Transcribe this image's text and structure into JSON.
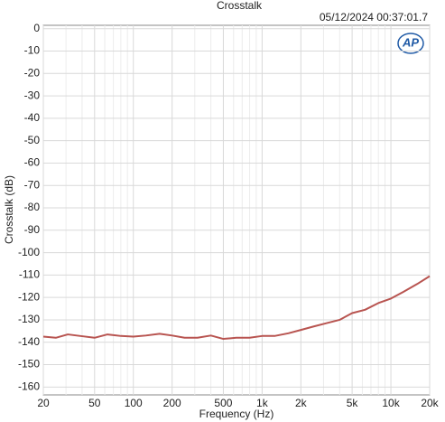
{
  "chart_data": {
    "type": "line",
    "title": "Crosstalk",
    "timestamp": "05/12/2024 00:37:01.7",
    "logo": "AP",
    "x_label": "Frequency (Hz)",
    "y_label": "Crosstalk (dB)",
    "xscale": "log",
    "grid": true,
    "x": [
      20,
      25,
      31,
      40,
      50,
      63,
      80,
      100,
      125,
      160,
      200,
      250,
      315,
      400,
      500,
      630,
      800,
      1000,
      1250,
      1600,
      2000,
      2500,
      3150,
      4000,
      5000,
      6300,
      8000,
      10000,
      12500,
      16000,
      20000
    ],
    "series": [
      {
        "color": "#b85450",
        "values": [
          -137.5,
          -138,
          -136.5,
          -137.3,
          -138,
          -136.5,
          -137.2,
          -137.5,
          -137,
          -136.2,
          -137,
          -138,
          -138,
          -137,
          -138.5,
          -138,
          -138,
          -137.2,
          -137.2,
          -136,
          -134.5,
          -133,
          -131.5,
          -130,
          -127,
          -125.5,
          -122.5,
          -120.5,
          -117.5,
          -114,
          -110.5
        ]
      }
    ],
    "xlim": [
      20,
      20000
    ],
    "xticks": [
      20,
      50,
      100,
      200,
      500,
      {
        "value": 1000,
        "label": "1k"
      },
      {
        "value": 2000,
        "label": "2k"
      },
      {
        "value": 5000,
        "label": "5k"
      },
      {
        "value": 10000,
        "label": "10k"
      },
      {
        "value": 20000,
        "label": "20k"
      }
    ],
    "xminorticks": [
      30,
      40,
      60,
      70,
      80,
      90,
      300,
      400,
      600,
      700,
      800,
      900,
      3000,
      4000,
      6000,
      7000,
      8000,
      9000
    ],
    "ylim": [
      -163.5,
      1.5
    ],
    "yticks": [
      0,
      -10,
      -20,
      -30,
      -40,
      -50,
      -60,
      -70,
      -80,
      -90,
      -100,
      -110,
      -120,
      -130,
      -140,
      -150,
      -160
    ]
  }
}
